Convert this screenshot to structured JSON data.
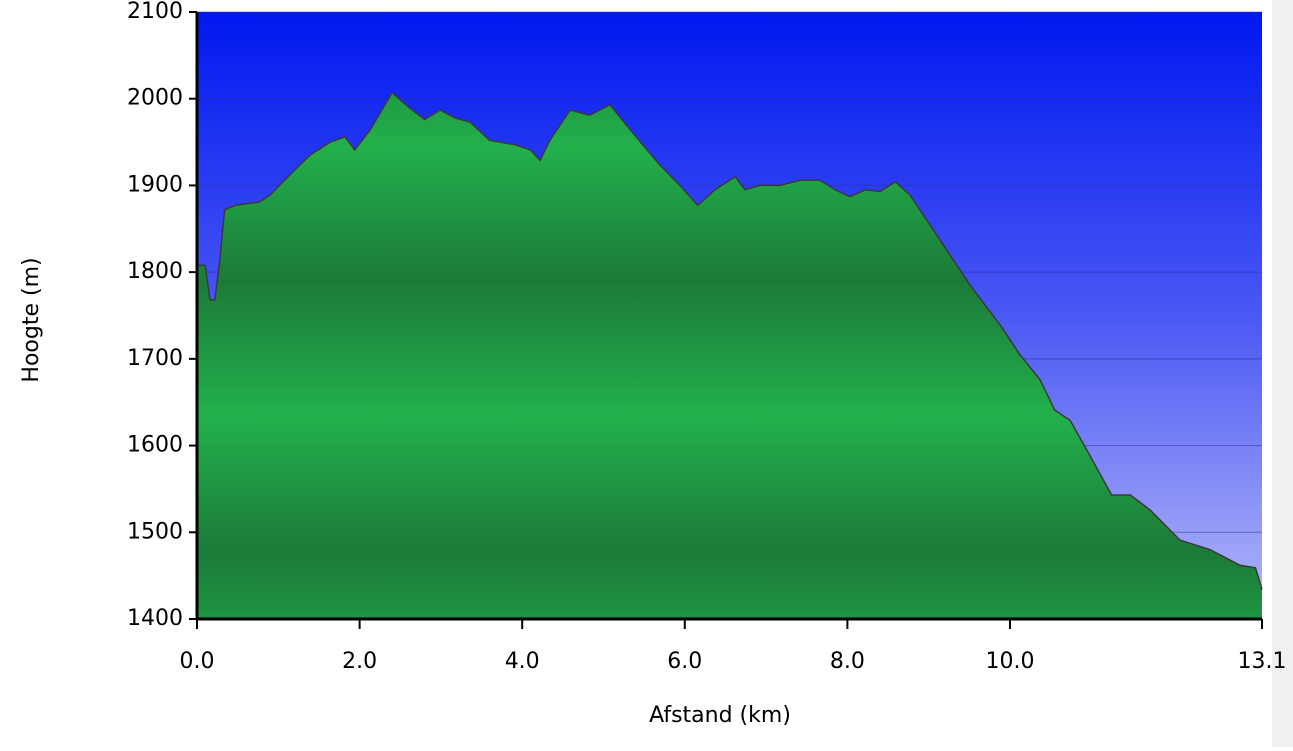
{
  "chart_data": {
    "type": "area",
    "x_label": "Afstand  (km)",
    "y_label": "Hoogte (m)",
    "x": [
      0,
      0.1,
      0.16,
      0.22,
      0.28,
      0.34,
      0.47,
      0.77,
      0.9,
      1.14,
      1.39,
      1.64,
      1.82,
      1.94,
      2.13,
      2.4,
      2.62,
      2.8,
      2.99,
      3.17,
      3.36,
      3.6,
      3.91,
      4.1,
      4.22,
      4.34,
      4.59,
      4.83,
      5.08,
      5.33,
      5.69,
      5.94,
      6.16,
      6.37,
      6.62,
      6.74,
      6.92,
      7.17,
      7.42,
      7.66,
      7.85,
      8.03,
      8.22,
      8.4,
      8.59,
      8.77,
      9.14,
      9.51,
      9.88,
      10.12,
      10.37,
      10.55,
      10.74,
      10.98,
      11.25,
      11.48,
      11.72,
      12.09,
      12.46,
      12.83,
      13.02,
      13.1
    ],
    "series": [
      {
        "name": "Hoogte",
        "color": "#22a84a",
        "values": [
          1808,
          1808,
          1768,
          1768,
          1814,
          1872,
          1877,
          1881,
          1889,
          1912,
          1935,
          1950,
          1956,
          1941,
          1964,
          2007,
          1989,
          1976,
          1987,
          1978,
          1973,
          1952,
          1947,
          1941,
          1929,
          1952,
          1987,
          1981,
          1993,
          1964,
          1924,
          1900,
          1877,
          1895,
          1910,
          1895,
          1900,
          1900,
          1906,
          1906,
          1895,
          1887,
          1895,
          1893,
          1904,
          1889,
          1837,
          1785,
          1739,
          1705,
          1676,
          1641,
          1629,
          1589,
          1543,
          1543,
          1526,
          1491,
          1480,
          1462,
          1459,
          1434
        ]
      }
    ],
    "xlim": [
      0,
      13.1
    ],
    "xticks": [
      {
        "value": 0,
        "label": "0.0"
      },
      {
        "value": 2,
        "label": "2.0"
      },
      {
        "value": 4,
        "label": "4.0"
      },
      {
        "value": 6,
        "label": "6.0"
      },
      {
        "value": 8,
        "label": "8.0"
      },
      {
        "value": 10,
        "label": "10.0"
      },
      13.1
    ],
    "ylim": [
      1400,
      2100
    ],
    "yticks": [
      1400,
      1500,
      1600,
      1700,
      1800,
      1900,
      2000,
      2100
    ],
    "grid": true
  }
}
